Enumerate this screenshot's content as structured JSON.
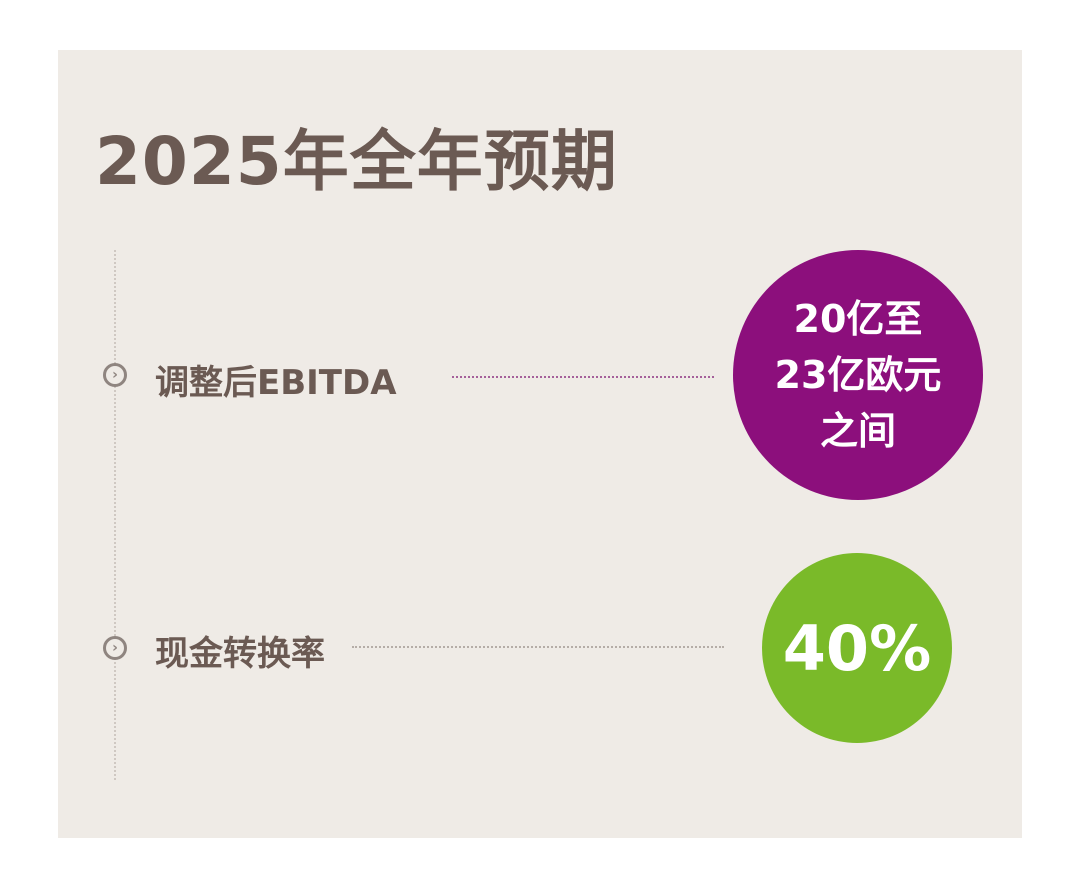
{
  "title": "2025年全年预期",
  "items": [
    {
      "label": "调整后EBITDA",
      "value_lines": [
        "20亿至",
        "23亿欧元",
        "之间"
      ],
      "color": "#8c0f7c",
      "dots_color": "#a5609a",
      "icon": "chevron-right-circle-icon"
    },
    {
      "label": "现金转换率",
      "value_lines": [
        "40%"
      ],
      "color": "#7aba29",
      "dots_color": "#b5ada7",
      "icon": "chevron-right-circle-icon"
    }
  ],
  "colors": {
    "background": "#efebe6",
    "text": "#6b5a53"
  }
}
